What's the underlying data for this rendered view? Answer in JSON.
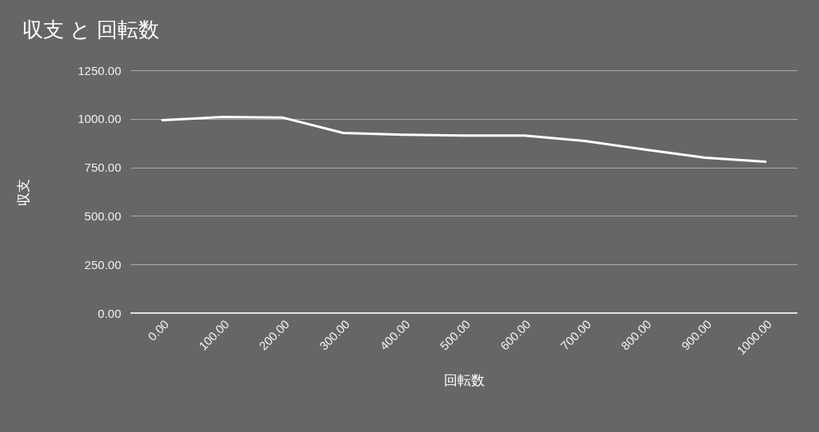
{
  "chart_data": {
    "type": "line",
    "title": "収支 と 回転数",
    "xlabel": "回転数",
    "ylabel": "収支",
    "x": [
      0,
      100,
      200,
      300,
      400,
      500,
      600,
      700,
      800,
      900,
      1000
    ],
    "series": [
      {
        "color": "#ffffff",
        "values": [
          993,
          1009,
          1006,
          927,
          918,
          914,
          914,
          886,
          842,
          800,
          779
        ]
      }
    ],
    "xlim": [
      -53,
      1053
    ],
    "xticks": [
      {
        "value": 0,
        "label": "0.00"
      },
      {
        "value": 100,
        "label": "100.00"
      },
      {
        "value": 200,
        "label": "200.00"
      },
      {
        "value": 300,
        "label": "300.00"
      },
      {
        "value": 400,
        "label": "400.00"
      },
      {
        "value": 500,
        "label": "500.00"
      },
      {
        "value": 600,
        "label": "600.00"
      },
      {
        "value": 700,
        "label": "700.00"
      },
      {
        "value": 800,
        "label": "800.00"
      },
      {
        "value": 900,
        "label": "900.00"
      },
      {
        "value": 1000,
        "label": "1000.00"
      }
    ],
    "ylim": [
      0,
      1250
    ],
    "yticks": [
      {
        "value": 0,
        "label": "0.00"
      },
      {
        "value": 250,
        "label": "250.00"
      },
      {
        "value": 500,
        "label": "500.00"
      },
      {
        "value": 750,
        "label": "750.00"
      },
      {
        "value": 1000,
        "label": "1000.00"
      },
      {
        "value": 1250,
        "label": "1250.00"
      }
    ],
    "grid": "y",
    "legend": false,
    "marker": "none",
    "line_style": "solid"
  }
}
